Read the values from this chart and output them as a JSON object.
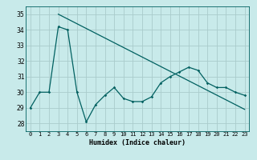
{
  "title": "",
  "xlabel": "Humidex (Indice chaleur)",
  "ylabel": "",
  "background_color": "#c8eaea",
  "grid_color": "#aacccc",
  "line_color": "#006060",
  "xlim": [
    -0.5,
    23.5
  ],
  "ylim": [
    27.5,
    35.5
  ],
  "yticks": [
    28,
    29,
    30,
    31,
    32,
    33,
    34,
    35
  ],
  "xticks": [
    0,
    1,
    2,
    3,
    4,
    5,
    6,
    7,
    8,
    9,
    10,
    11,
    12,
    13,
    14,
    15,
    16,
    17,
    18,
    19,
    20,
    21,
    22,
    23
  ],
  "series1_x": [
    0,
    1,
    2,
    3,
    4,
    5,
    6,
    7,
    8,
    9,
    10,
    11,
    12,
    13,
    14,
    15,
    16,
    17,
    18,
    19,
    20,
    21,
    22,
    23
  ],
  "series1_y": [
    29.0,
    30.0,
    30.0,
    34.2,
    34.0,
    30.0,
    28.1,
    29.2,
    29.8,
    30.3,
    29.6,
    29.4,
    29.4,
    29.7,
    30.6,
    31.0,
    31.3,
    31.6,
    31.4,
    30.6,
    30.3,
    30.3,
    30.0,
    29.8
  ],
  "series2_x": [
    3,
    23
  ],
  "series2_y": [
    35.0,
    28.9
  ]
}
